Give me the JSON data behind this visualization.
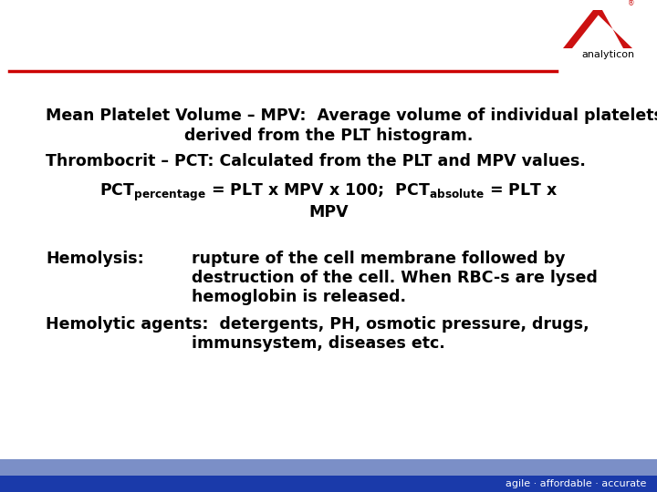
{
  "bg_color": "#ffffff",
  "header_line_color": "#cc0000",
  "footer_bar1_color": "#7b8fc7",
  "footer_bar2_color": "#1a3aaa",
  "footer_text": "agile · affordable · accurate",
  "footer_text_color": "#ffffff",
  "line1a": "Mean Platelet Volume – MPV:  Average volume of individual platelets",
  "line1b": "derived from the PLT histogram.",
  "line2": "Thrombocrit – PCT: Calculated from the PLT and MPV values.",
  "pct_line2": "MPV",
  "hemo_label": "Hemolysis:",
  "hemo_text1": "rupture of the cell membrane followed by",
  "hemo_text2": "destruction of the cell. When RBC-s are lysed",
  "hemo_text3": "hemoglobin is released.",
  "agent_line1": "Hemolytic agents:  detergents, PH, osmotic pressure, drugs,",
  "agent_line2": "immunsystem, diseases etc.",
  "text_color": "#000000",
  "font_size_main": 12.5,
  "font_size_sub": 8.5,
  "font_size_footer": 8
}
